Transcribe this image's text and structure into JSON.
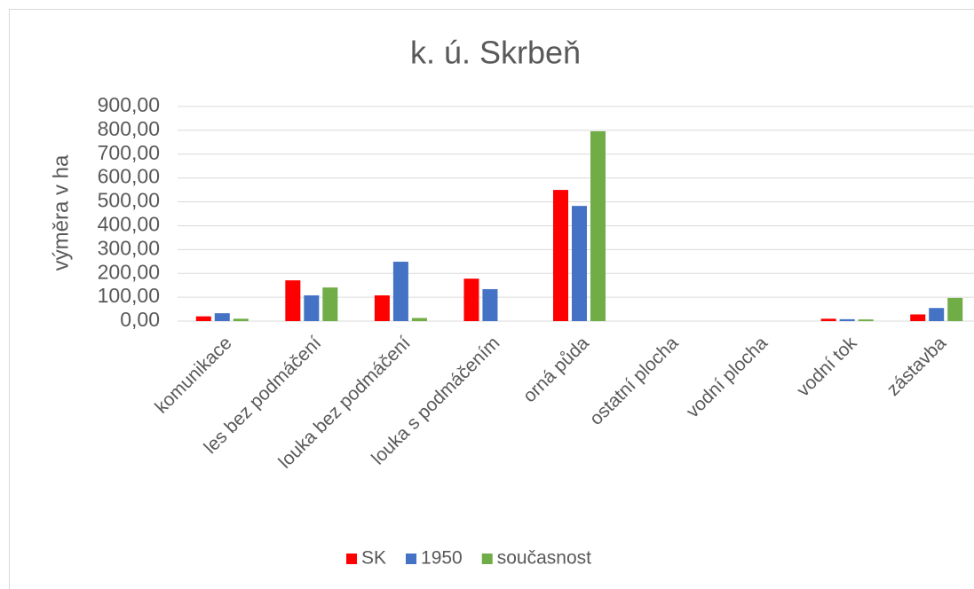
{
  "chart_data": {
    "type": "bar",
    "title": "k. ú. Skrbeň",
    "y_label": "výměra v ha",
    "categories": [
      "komunikace",
      "les bez podmáčení",
      "louka bez podmáčení",
      "louka s podmáčením",
      "orná půda",
      "ostatní plocha",
      "vodní plocha",
      "vodní tok",
      "zástavba"
    ],
    "series": [
      {
        "name": "SK",
        "color": "#ff0000",
        "values": [
          20,
          171,
          108,
          178,
          550,
          0,
          0,
          10,
          28
        ]
      },
      {
        "name": "1950",
        "color": "#4472c4",
        "values": [
          33,
          108,
          249,
          134,
          483,
          0,
          0,
          8,
          55
        ]
      },
      {
        "name": "současnost",
        "color": "#70ad47",
        "values": [
          10,
          141,
          13,
          0,
          796,
          0,
          0,
          7,
          97
        ]
      }
    ],
    "ylim": [
      0,
      900
    ],
    "yticks": [
      {
        "value": 0,
        "label": "0,00"
      },
      {
        "value": 100,
        "label": "100,00"
      },
      {
        "value": 200,
        "label": "200,00"
      },
      {
        "value": 300,
        "label": "300,00"
      },
      {
        "value": 400,
        "label": "400,00"
      },
      {
        "value": 500,
        "label": "500,00"
      },
      {
        "value": 600,
        "label": "600,00"
      },
      {
        "value": 700,
        "label": "700,00"
      },
      {
        "value": 800,
        "label": "800,00"
      },
      {
        "value": 900,
        "label": "900,00"
      }
    ],
    "grid": true,
    "legend": "bottom"
  }
}
